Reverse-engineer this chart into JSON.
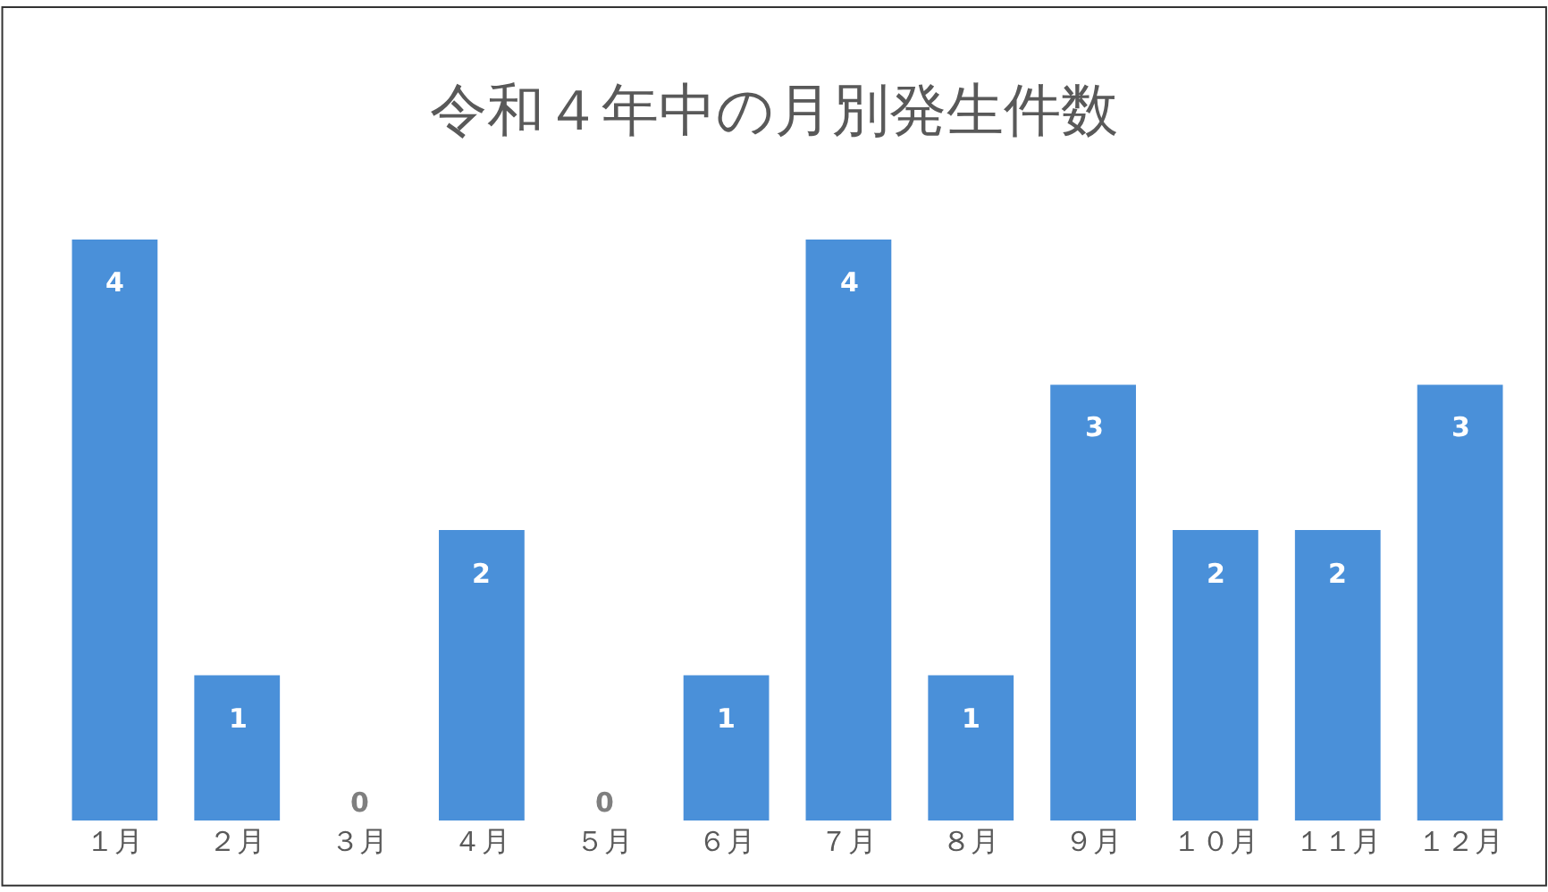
{
  "chart_data": {
    "type": "bar",
    "title": "令和４年中の月別発生件数",
    "categories": [
      "１月",
      "２月",
      "３月",
      "４月",
      "５月",
      "６月",
      "７月",
      "８月",
      "９月",
      "１０月",
      "１１月",
      "１２月"
    ],
    "values": [
      4,
      1,
      0,
      2,
      0,
      1,
      4,
      1,
      3,
      2,
      2,
      3
    ],
    "color": "#4a90d9",
    "data_labels": true,
    "grid": false,
    "legend": false
  }
}
